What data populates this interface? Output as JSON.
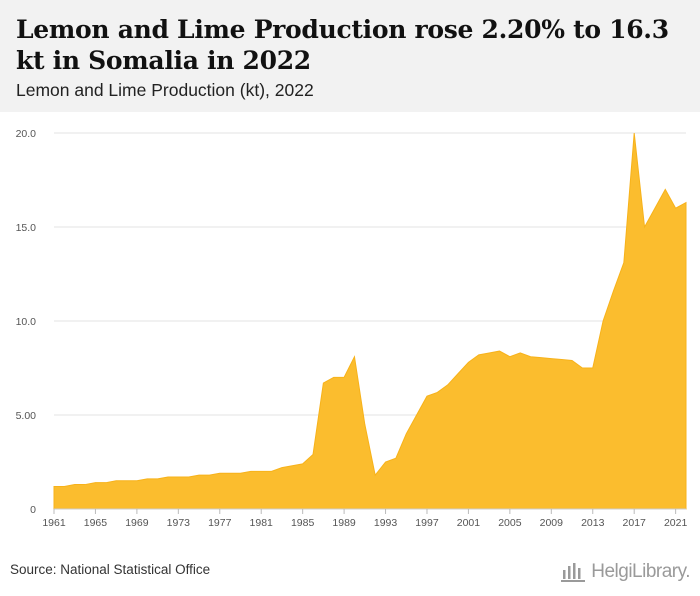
{
  "header": {
    "title": "Lemon and Lime Production rose 2.20% to 16.3 kt in Somalia in 2022",
    "subtitle": "Lemon and Lime Production (kt), 2022"
  },
  "footer": {
    "source": "Source: National Statistical Office",
    "brand": "HelgiLibrary."
  },
  "colors": {
    "area_fill": "#fbbd2e",
    "area_stroke": "#f7b21a",
    "grid": "#e3e3e3",
    "tick_text": "#555555"
  },
  "chart_data": {
    "type": "area",
    "x": [
      1961,
      1962,
      1963,
      1964,
      1965,
      1966,
      1967,
      1968,
      1969,
      1970,
      1971,
      1972,
      1973,
      1974,
      1975,
      1976,
      1977,
      1978,
      1979,
      1980,
      1981,
      1982,
      1983,
      1984,
      1985,
      1986,
      1987,
      1988,
      1989,
      1990,
      1991,
      1992,
      1993,
      1994,
      1995,
      1996,
      1997,
      1998,
      1999,
      2000,
      2001,
      2002,
      2003,
      2004,
      2005,
      2006,
      2007,
      2008,
      2009,
      2010,
      2011,
      2012,
      2013,
      2014,
      2015,
      2016,
      2017,
      2018,
      2019,
      2020,
      2021,
      2022
    ],
    "series": [
      {
        "values": [
          1.2,
          1.2,
          1.3,
          1.3,
          1.4,
          1.4,
          1.5,
          1.5,
          1.5,
          1.6,
          1.6,
          1.7,
          1.7,
          1.7,
          1.8,
          1.8,
          1.9,
          1.9,
          1.9,
          2.0,
          2.0,
          2.0,
          2.2,
          2.3,
          2.4,
          2.9,
          6.7,
          7.0,
          7.0,
          8.1,
          4.5,
          1.8,
          2.5,
          2.7,
          4.0,
          5.0,
          6.0,
          6.2,
          6.6,
          7.2,
          7.8,
          8.2,
          8.3,
          8.4,
          8.1,
          8.3,
          8.1,
          8.05,
          8.0,
          7.95,
          7.9,
          7.5,
          7.5,
          10.0,
          11.6,
          13.1,
          20.0,
          15.0,
          16.0,
          17.0,
          16.0,
          16.3
        ]
      }
    ],
    "y_ticks": [
      "0",
      "5.00",
      "10.0",
      "15.0",
      "20.0"
    ],
    "y_tick_values": [
      0,
      5,
      10,
      15,
      20
    ],
    "x_ticks": [
      "1961",
      "1965",
      "1969",
      "1973",
      "1977",
      "1981",
      "1985",
      "1989",
      "1993",
      "1997",
      "2001",
      "2005",
      "2009",
      "2013",
      "2017",
      "2021"
    ],
    "ylim": [
      0,
      20
    ],
    "xlim": [
      1961,
      2022
    ],
    "grid": true,
    "xlabel": "",
    "ylabel": ""
  }
}
